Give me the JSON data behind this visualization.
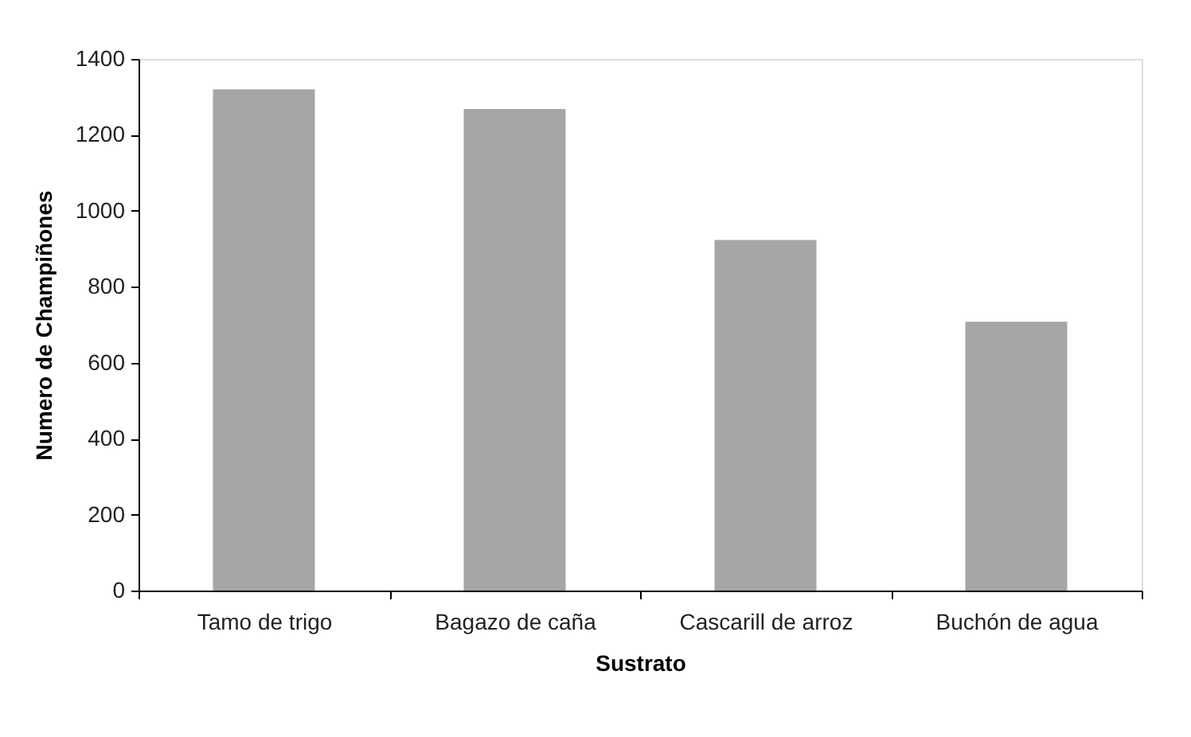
{
  "chart_data": {
    "type": "bar",
    "xlabel": "Sustrato",
    "ylabel": "Numero de Champiñones",
    "categories": [
      "Tamo de trigo",
      "Bagazo de caña",
      "Cascarill de arroz",
      "Buchón de agua"
    ],
    "values": [
      1320,
      1268,
      923,
      708
    ],
    "color": "#a6a6a6",
    "ylim": [
      0,
      1400
    ],
    "yticks": [
      0,
      200,
      400,
      600,
      800,
      1000,
      1200,
      1400
    ],
    "grid": false
  }
}
